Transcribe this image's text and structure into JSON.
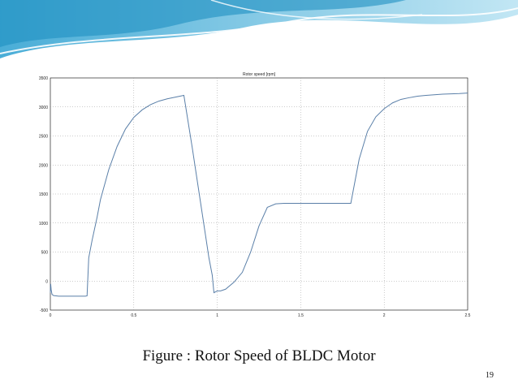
{
  "slide": {
    "caption": "Figure :  Rotor Speed of BLDC Motor",
    "page_number": "19",
    "accent_color": "#4fb3d9"
  },
  "chart_data": {
    "type": "line",
    "title": "Rotor speed [rpm]",
    "xlabel": "",
    "ylabel": "",
    "xlim": [
      0,
      2.5
    ],
    "ylim": [
      -500,
      3500
    ],
    "xticks": [
      "0",
      "0.5",
      "1",
      "1.5",
      "2",
      "2.5"
    ],
    "yticks": [
      "-500",
      "0",
      "500",
      "1000",
      "1500",
      "2000",
      "2500",
      "3000",
      "3500"
    ],
    "grid": true,
    "series": [
      {
        "color": "#5a7fa8",
        "x": [
          0,
          0.002,
          0.005,
          0.01,
          0.02,
          0.05,
          0.1,
          0.15,
          0.2,
          0.21,
          0.22,
          0.23,
          0.25,
          0.28,
          0.3,
          0.35,
          0.4,
          0.45,
          0.5,
          0.55,
          0.6,
          0.65,
          0.7,
          0.75,
          0.8,
          0.85,
          0.9,
          0.95,
          0.97,
          0.98,
          1.0,
          1.02,
          1.05,
          1.1,
          1.15,
          1.2,
          1.25,
          1.3,
          1.35,
          1.4,
          1.5,
          1.6,
          1.7,
          1.78,
          1.8,
          1.85,
          1.9,
          1.95,
          2.0,
          2.05,
          2.1,
          2.15,
          2.2,
          2.25,
          2.3,
          2.35,
          2.4,
          2.45,
          2.5
        ],
        "y": [
          -200,
          -50,
          -150,
          -230,
          -250,
          -260,
          -260,
          -260,
          -260,
          -260,
          -255,
          400,
          700,
          1100,
          1400,
          1920,
          2320,
          2620,
          2820,
          2950,
          3040,
          3100,
          3140,
          3170,
          3200,
          2300,
          1350,
          400,
          100,
          -200,
          -170,
          -170,
          -140,
          -20,
          150,
          500,
          950,
          1270,
          1330,
          1340,
          1340,
          1340,
          1340,
          1340,
          1340,
          2100,
          2580,
          2830,
          2970,
          3070,
          3130,
          3160,
          3185,
          3200,
          3210,
          3220,
          3225,
          3230,
          3240
        ]
      }
    ]
  }
}
